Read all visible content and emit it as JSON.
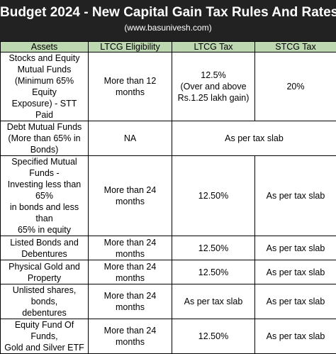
{
  "header": {
    "title": "Budget 2024 - New Capital Gain Tax Rules And Rates",
    "subtitle": "(www.basunivesh.com)"
  },
  "table": {
    "columns": [
      "Assets",
      "LTCG Eligibility",
      "LTCG Tax",
      "STCG Tax"
    ],
    "rows": [
      {
        "asset_lines": [
          "Stocks and Equity",
          "Mutual Funds",
          "(Minimum 65% Equity",
          "Exposure) - STT Paid"
        ],
        "eligibility": "More than 12 months",
        "ltcg_lines": [
          "12.5%",
          "(Over and above",
          "Rs.1.25 lakh gain)"
        ],
        "stcg": "20%"
      },
      {
        "asset_lines": [
          "Debt Mutual Funds",
          "(More than 65% in",
          "Bonds)"
        ],
        "eligibility": "NA",
        "merged": "As per tax slab"
      },
      {
        "asset_lines": [
          "Specified Mutual",
          "Funds -",
          "Investing less than 65%",
          "in bonds and less than",
          "65% in equity"
        ],
        "eligibility": "More than 24 months",
        "ltcg": "12.50%",
        "stcg": "As per tax slab"
      },
      {
        "asset_lines": [
          "Listed Bonds and",
          "Debentures"
        ],
        "eligibility": "More than 24 months",
        "ltcg": "12.50%",
        "stcg": "As per tax slab"
      },
      {
        "asset_lines": [
          "Physical Gold and",
          "Property"
        ],
        "eligibility": "More than 24 months",
        "ltcg": "12.50%",
        "stcg": "As per tax slab"
      },
      {
        "asset_lines": [
          "Unlisted shares, bonds,",
          "debentures"
        ],
        "eligibility": "More than 24 months",
        "ltcg": "As per tax slab",
        "stcg": "As per tax slab"
      },
      {
        "asset_lines": [
          "Equity Fund Of Funds,",
          "Gold and Silver ETF"
        ],
        "eligibility": "More than 24 months",
        "ltcg": "12.50%",
        "stcg": "As per tax slab"
      }
    ]
  },
  "colors": {
    "header_bg": "#222222",
    "header_text": "#ffffff",
    "column_header_bg": "#bdd7b0",
    "border": "#000000"
  }
}
